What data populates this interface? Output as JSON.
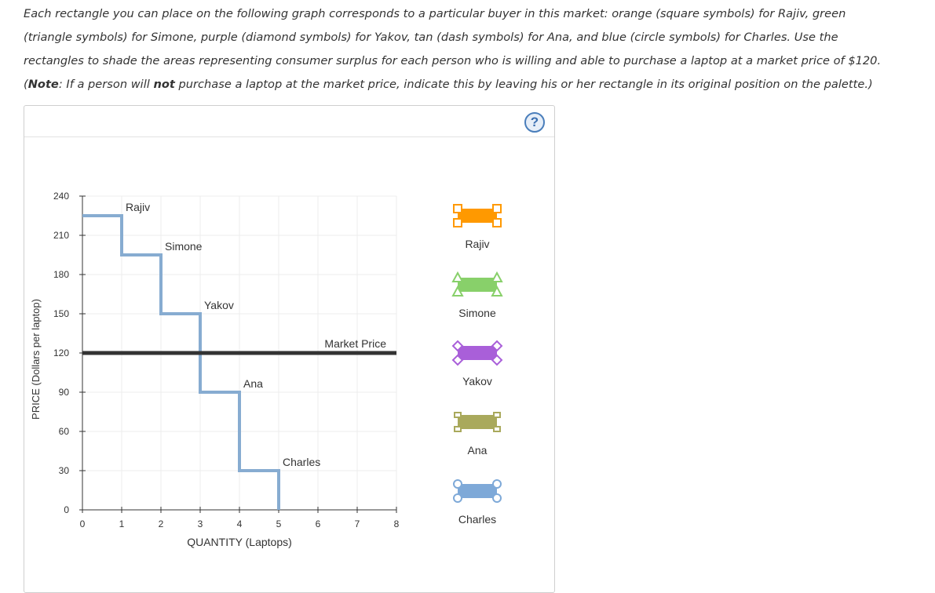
{
  "instructions": {
    "line1": "Each rectangle you can place on the following graph corresponds to a particular buyer in this market: orange (square symbols) for Rajiv, green",
    "line2": "(triangle symbols) for Simone, purple (diamond symbols) for Yakov, tan (dash symbols) for Ana, and blue (circle symbols) for Charles. Use the",
    "line3": "rectangles to shade the areas representing consumer surplus for each person who is willing and able to purchase a laptop at a market price of $120.",
    "note_prefix": "(",
    "note_label": "Note",
    "note_mid1": ": If a person will ",
    "note_not": "not",
    "note_mid2": " purchase a laptop at the market price, indicate this by leaving his or her rectangle in its original position on the palette.)"
  },
  "help": {
    "label": "?"
  },
  "chart_data": {
    "type": "step",
    "xlabel": "QUANTITY (Laptops)",
    "ylabel": "PRICE (Dollars per laptop)",
    "xlim": [
      0,
      8
    ],
    "ylim": [
      0,
      240
    ],
    "x_ticks": [
      0,
      1,
      2,
      3,
      4,
      5,
      6,
      7,
      8
    ],
    "y_ticks": [
      0,
      30,
      60,
      90,
      120,
      150,
      180,
      210,
      240
    ],
    "grid": true,
    "demand_steps": [
      {
        "buyer": "Rajiv",
        "from_q": 0,
        "to_q": 1,
        "price": 225
      },
      {
        "buyer": "Simone",
        "from_q": 1,
        "to_q": 2,
        "price": 195
      },
      {
        "buyer": "Yakov",
        "from_q": 2,
        "to_q": 3,
        "price": 150
      },
      {
        "buyer": "Ana",
        "from_q": 3,
        "to_q": 4,
        "price": 90
      },
      {
        "buyer": "Charles",
        "from_q": 4,
        "to_q": 5,
        "price": 30
      }
    ],
    "market_price": {
      "label": "Market Price",
      "value": 120
    },
    "step_color": "#87acd1",
    "price_line_color": "#333333"
  },
  "palette": [
    {
      "name": "Rajiv",
      "color": "#ff9900",
      "symbol": "square"
    },
    {
      "name": "Simone",
      "color": "#88d06a",
      "symbol": "triangle"
    },
    {
      "name": "Yakov",
      "color": "#a95fd9",
      "symbol": "diamond"
    },
    {
      "name": "Ana",
      "color": "#a9a95c",
      "symbol": "dash"
    },
    {
      "name": "Charles",
      "color": "#7ea9d8",
      "symbol": "circle"
    }
  ]
}
